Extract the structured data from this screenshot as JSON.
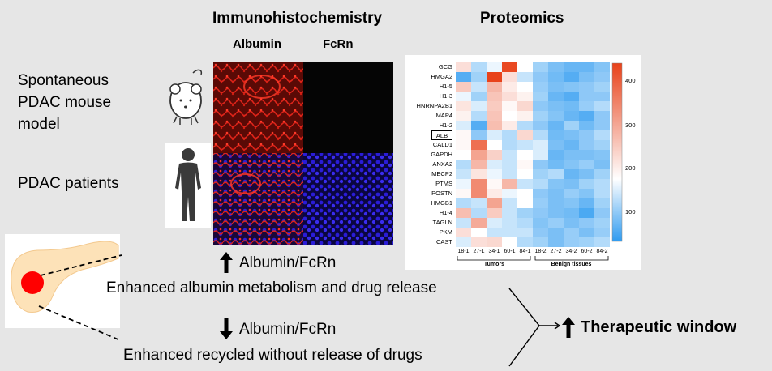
{
  "titles": {
    "ihc": "Immunohistochemistry",
    "proteomics": "Proteomics",
    "albumin": "Albumin",
    "fcrn": "FcRn"
  },
  "labels": {
    "mouse": "Spontaneous PDAC mouse model",
    "mouse_lines": [
      "Spontaneous",
      "PDAC mouse",
      "model"
    ],
    "patients": "PDAC patients"
  },
  "icons": {
    "mouse": "mouse-icon",
    "human": "human-silhouette-icon",
    "pancreas": "pancreas-icon",
    "up_arrow": "up-arrow-icon",
    "down_arrow": "down-arrow-icon"
  },
  "flow": {
    "up_label": "Albumin/FcRn",
    "up_caption": "Enhanced albumin metabolism and drug release",
    "down_label": "Albumin/FcRn",
    "down_caption": "Enhanced recycled without release of drugs",
    "result": "Therapeutic window"
  },
  "colors": {
    "background": "#e6e6e6",
    "tissue_red": "#c8140a",
    "tissue_blue": "#2a1cd8",
    "tumor_dot": "#ff0000",
    "pancreas": "#fde2b8",
    "heat_low": "#2f9bf0",
    "heat_mid": "#ffffff",
    "heat_high": "#e8421a"
  },
  "heatmap": {
    "rows": [
      "GCG",
      "HMGA2",
      "H1-5",
      "H1-3",
      "HNRNPA2B1",
      "MAP4",
      "H1-2",
      "ALB",
      "CALD1",
      "GAPDH",
      "ANXA2",
      "MECP2",
      "PTMS",
      "POSTN",
      "HMGB1",
      "H1-4",
      "TAGLN",
      "PKM",
      "CAST"
    ],
    "highlighted_row": "ALB",
    "columns": [
      "18-1",
      "27-1",
      "34-1",
      "60-1",
      "84-1",
      "18-2",
      "27-2",
      "34-2",
      "60-2",
      "84-2"
    ],
    "groups": [
      "Tumors",
      "Benign tissues"
    ],
    "colorbar_ticks": [
      "400",
      "300",
      "200",
      "100"
    ],
    "range": [
      40,
      440
    ],
    "values": [
      [
        200,
        110,
        140,
        430,
        150,
        100,
        80,
        70,
        70,
        85
      ],
      [
        60,
        100,
        440,
        200,
        120,
        90,
        75,
        60,
        80,
        90
      ],
      [
        230,
        120,
        260,
        180,
        150,
        95,
        80,
        85,
        90,
        100
      ],
      [
        140,
        100,
        240,
        200,
        170,
        100,
        70,
        60,
        90,
        90
      ],
      [
        190,
        130,
        230,
        160,
        210,
        90,
        80,
        75,
        95,
        110
      ],
      [
        170,
        110,
        240,
        150,
        170,
        100,
        85,
        70,
        60,
        90
      ],
      [
        130,
        60,
        250,
        180,
        110,
        90,
        70,
        100,
        75,
        90
      ],
      [
        160,
        90,
        130,
        110,
        210,
        110,
        75,
        80,
        90,
        110
      ],
      [
        160,
        370,
        150,
        110,
        120,
        130,
        80,
        70,
        90,
        100
      ],
      [
        150,
        290,
        220,
        120,
        150,
        130,
        70,
        80,
        80,
        85
      ],
      [
        110,
        260,
        130,
        120,
        160,
        90,
        75,
        85,
        95,
        80
      ],
      [
        120,
        190,
        140,
        120,
        150,
        100,
        110,
        70,
        80,
        100
      ],
      [
        140,
        330,
        160,
        260,
        120,
        110,
        85,
        80,
        100,
        110
      ],
      [
        160,
        330,
        180,
        140,
        150,
        90,
        80,
        95,
        85,
        110
      ],
      [
        110,
        120,
        290,
        120,
        150,
        95,
        80,
        85,
        70,
        100
      ],
      [
        250,
        110,
        230,
        120,
        100,
        90,
        80,
        75,
        55,
        90
      ],
      [
        120,
        280,
        130,
        120,
        110,
        85,
        95,
        80,
        90,
        100
      ],
      [
        200,
        150,
        120,
        120,
        120,
        90,
        80,
        95,
        80,
        95
      ],
      [
        130,
        200,
        210,
        150,
        110,
        100,
        80,
        95,
        100,
        110
      ]
    ]
  }
}
